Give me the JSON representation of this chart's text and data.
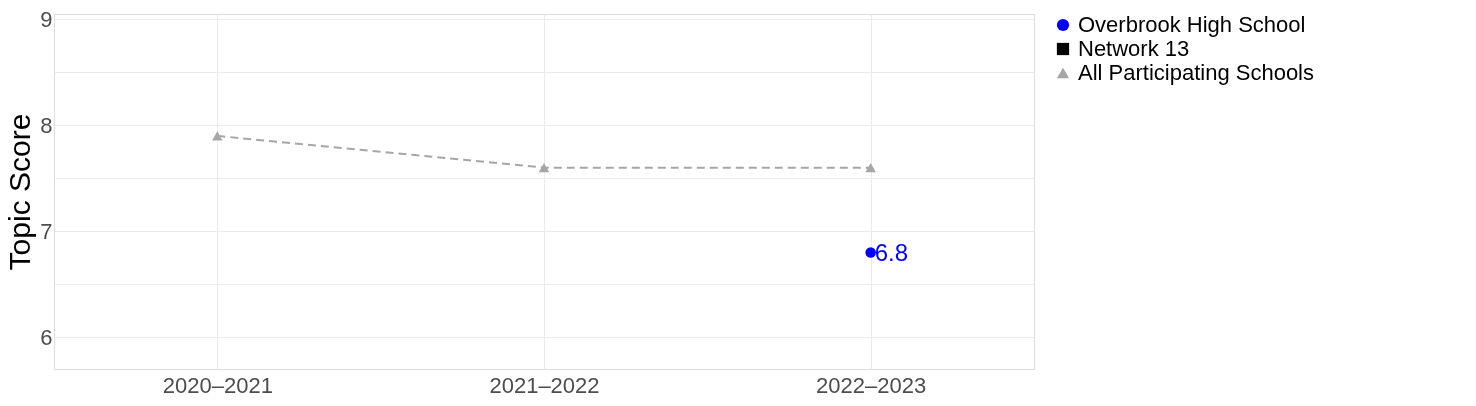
{
  "chart_data": {
    "type": "line",
    "ylabel": "Topic Score",
    "categories": [
      "2020–2021",
      "2021–2022",
      "2022–2023"
    ],
    "series": [
      {
        "name": "Overbrook High School",
        "color": "#0000ff",
        "marker": "circle",
        "line_style": "solid",
        "values": [
          null,
          null,
          6.8
        ],
        "value_labels": [
          null,
          null,
          "6.8"
        ]
      },
      {
        "name": "Network 13",
        "color": "#000000",
        "marker": "square",
        "line_style": "solid",
        "values": [
          null,
          null,
          null
        ]
      },
      {
        "name": "All Participating Schools",
        "color": "#a6a6a6",
        "marker": "triangle",
        "line_style": "dashed",
        "values": [
          7.9,
          7.6,
          7.6
        ]
      }
    ],
    "ylim": [
      5.7,
      9.05
    ],
    "yticks": [
      6,
      {
        "value": 6.5,
        "label": null
      },
      7,
      {
        "value": 7.5,
        "label": null
      },
      8,
      {
        "value": 8.5,
        "label": null
      },
      9
    ],
    "grid": true,
    "legend": "right"
  }
}
